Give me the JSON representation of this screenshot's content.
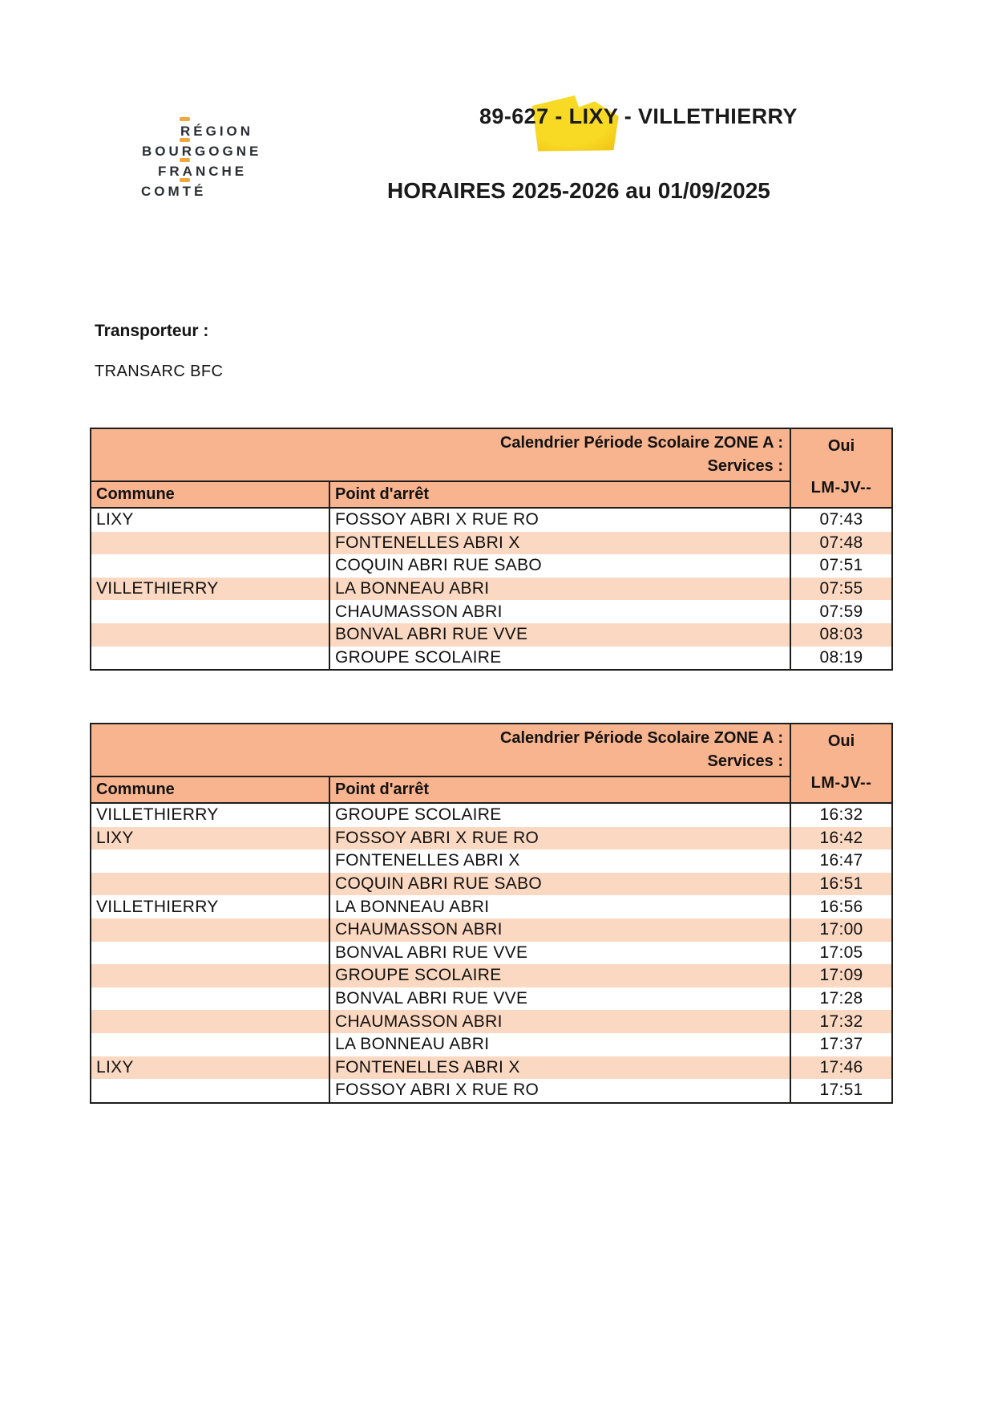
{
  "logo": {
    "lines": [
      "RÉGION",
      "BOURGOGNE",
      "FRANCHE",
      "COMTÉ"
    ]
  },
  "header": {
    "title_prefix": "89-",
    "title_highlighted": "627 -",
    "title_suffix": " LIXY - VILLETHIERRY",
    "subtitle": "HORAIRES 2025-2026 au 01/09/2025"
  },
  "transporteur": {
    "label": "Transporteur :",
    "name": "TRANSARC BFC"
  },
  "colors": {
    "table_header_salmon": "#f7b48e",
    "table_row_light_salmon": "#fbd8c1",
    "highlight_yellow": "#f8da25",
    "logo_amber": "#f0a73c",
    "logo_charcoal": "#2b2e34",
    "border_dark": "#1d1d1b"
  },
  "tables": [
    {
      "calendar_label": "Calendrier Période Scolaire ZONE A :",
      "services_label": "Services :",
      "calendar_value": "Oui",
      "service_code": "LM-JV--",
      "col_commune": "Commune",
      "col_stop": "Point d'arrêt",
      "rows": [
        {
          "commune": "LIXY",
          "stop": "FOSSOY ABRI X RUE RO",
          "time": "07:43"
        },
        {
          "commune": "",
          "stop": "FONTENELLES ABRI X",
          "time": "07:48"
        },
        {
          "commune": "",
          "stop": "COQUIN ABRI RUE SABO",
          "time": "07:51"
        },
        {
          "commune": "VILLETHIERRY",
          "stop": "LA BONNEAU ABRI",
          "time": "07:55"
        },
        {
          "commune": "",
          "stop": "CHAUMASSON ABRI",
          "time": "07:59"
        },
        {
          "commune": "",
          "stop": "BONVAL ABRI RUE VVE",
          "time": "08:03"
        },
        {
          "commune": "",
          "stop": "GROUPE SCOLAIRE",
          "time": "08:19"
        }
      ]
    },
    {
      "calendar_label": "Calendrier Période Scolaire ZONE A :",
      "services_label": "Services :",
      "calendar_value": "Oui",
      "service_code": "LM-JV--",
      "col_commune": "Commune",
      "col_stop": "Point d'arrêt",
      "rows": [
        {
          "commune": "VILLETHIERRY",
          "stop": "GROUPE SCOLAIRE",
          "time": "16:32"
        },
        {
          "commune": "LIXY",
          "stop": "FOSSOY ABRI X RUE RO",
          "time": "16:42"
        },
        {
          "commune": "",
          "stop": "FONTENELLES ABRI X",
          "time": "16:47"
        },
        {
          "commune": "",
          "stop": "COQUIN ABRI RUE SABO",
          "time": "16:51"
        },
        {
          "commune": "VILLETHIERRY",
          "stop": "LA BONNEAU ABRI",
          "time": "16:56"
        },
        {
          "commune": "",
          "stop": "CHAUMASSON ABRI",
          "time": "17:00"
        },
        {
          "commune": "",
          "stop": "BONVAL ABRI RUE VVE",
          "time": "17:05"
        },
        {
          "commune": "",
          "stop": "GROUPE SCOLAIRE",
          "time": "17:09"
        },
        {
          "commune": "",
          "stop": "BONVAL ABRI RUE VVE",
          "time": "17:28"
        },
        {
          "commune": "",
          "stop": "CHAUMASSON ABRI",
          "time": "17:32"
        },
        {
          "commune": "",
          "stop": "LA BONNEAU ABRI",
          "time": "17:37"
        },
        {
          "commune": "LIXY",
          "stop": "FONTENELLES ABRI X",
          "time": "17:46"
        },
        {
          "commune": "",
          "stop": "FOSSOY ABRI X RUE RO",
          "time": "17:51"
        }
      ]
    }
  ]
}
